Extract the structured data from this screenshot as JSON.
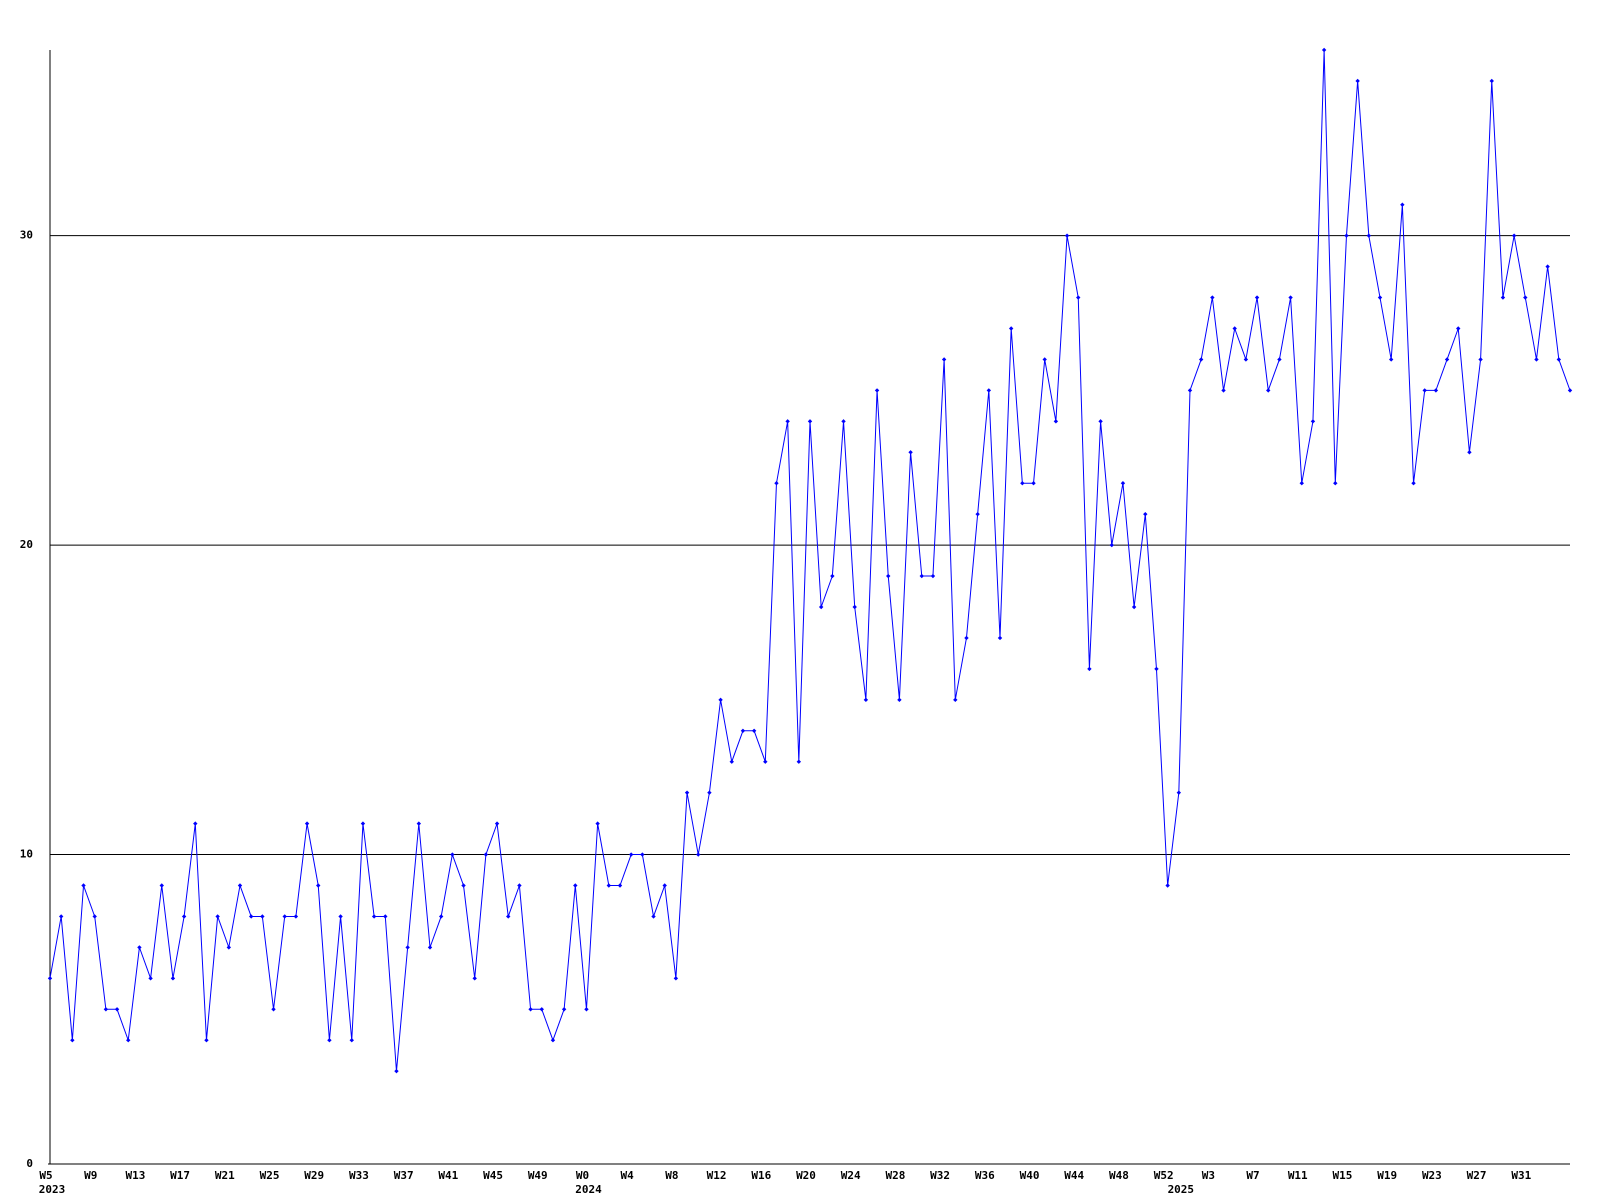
{
  "chart_data": {
    "type": "line",
    "color": "#0000ff",
    "grid": true,
    "ylim": [
      0,
      36
    ],
    "yticks": [
      0,
      10,
      20,
      30
    ],
    "categories": [
      "W5",
      null,
      null,
      null,
      "W9",
      null,
      null,
      null,
      "W13",
      null,
      null,
      null,
      "W17",
      null,
      null,
      null,
      "W21",
      null,
      null,
      null,
      "W25",
      null,
      null,
      null,
      "W29",
      null,
      null,
      null,
      "W33",
      null,
      null,
      null,
      "W37",
      null,
      null,
      null,
      "W41",
      null,
      null,
      null,
      "W45",
      null,
      null,
      null,
      "W49",
      null,
      null,
      null,
      "W0",
      null,
      null,
      null,
      "W4",
      null,
      null,
      null,
      "W8",
      null,
      null,
      null,
      "W12",
      null,
      null,
      null,
      "W16",
      null,
      null,
      null,
      "W20",
      null,
      null,
      null,
      "W24",
      null,
      null,
      null,
      "W28",
      null,
      null,
      null,
      "W32",
      null,
      null,
      null,
      "W36",
      null,
      null,
      null,
      "W40",
      null,
      null,
      null,
      "W44",
      null,
      null,
      null,
      "W48",
      null,
      null,
      null,
      "W52",
      null,
      null,
      null,
      "W3",
      null,
      null,
      null,
      "W7",
      null,
      null,
      null,
      "W11",
      null,
      null,
      null,
      "W15",
      null,
      null,
      null,
      "W19",
      null,
      null,
      null,
      "W23",
      null,
      null,
      null,
      "W27",
      null,
      null,
      null,
      "W31",
      null,
      null,
      null,
      null
    ],
    "x_year_labels": [
      "2023",
      null,
      null,
      null,
      null,
      null,
      null,
      null,
      null,
      null,
      null,
      null,
      null,
      null,
      null,
      null,
      null,
      null,
      null,
      null,
      null,
      null,
      null,
      null,
      null,
      null,
      null,
      null,
      null,
      null,
      null,
      null,
      null,
      null,
      null,
      null,
      null,
      null,
      null,
      null,
      null,
      null,
      null,
      null,
      null,
      null,
      null,
      null,
      "2024",
      null,
      null,
      null,
      null,
      null,
      null,
      null,
      null,
      null,
      null,
      null,
      null,
      null,
      null,
      null,
      null,
      null,
      null,
      null,
      null,
      null,
      null,
      null,
      null,
      null,
      null,
      null,
      null,
      null,
      null,
      null,
      null,
      null,
      null,
      null,
      null,
      null,
      null,
      null,
      null,
      null,
      null,
      null,
      null,
      null,
      null,
      null,
      null,
      null,
      null,
      null,
      null,
      "2025",
      null,
      null,
      null,
      null,
      null,
      null,
      null,
      null,
      null,
      null,
      null,
      null,
      null,
      null,
      null,
      null,
      null,
      null,
      null,
      null,
      null,
      null,
      null,
      null,
      null,
      null,
      null,
      null,
      null,
      null,
      null,
      null,
      null,
      null,
      null
    ],
    "values": [
      6,
      8,
      4,
      9,
      8,
      5,
      5,
      4,
      7,
      6,
      9,
      6,
      8,
      11,
      4,
      8,
      7,
      9,
      8,
      8,
      5,
      8,
      8,
      11,
      9,
      4,
      8,
      4,
      11,
      8,
      8,
      3,
      7,
      11,
      7,
      8,
      10,
      9,
      6,
      10,
      11,
      8,
      9,
      5,
      5,
      4,
      5,
      9,
      5,
      11,
      9,
      9,
      10,
      10,
      8,
      9,
      6,
      12,
      10,
      12,
      15,
      13,
      14,
      14,
      13,
      22,
      24,
      13,
      24,
      18,
      19,
      24,
      18,
      15,
      25,
      19,
      15,
      23,
      19,
      19,
      26,
      15,
      17,
      21,
      25,
      17,
      27,
      22,
      22,
      26,
      24,
      30,
      28,
      16,
      24,
      20,
      22,
      18,
      21,
      16,
      9,
      12,
      25,
      26,
      28,
      25,
      27,
      26,
      28,
      25,
      26,
      28,
      22,
      24,
      36,
      22,
      30,
      35,
      30,
      28,
      26,
      31,
      22,
      25,
      25,
      26,
      27,
      23,
      26,
      35,
      28,
      30,
      28,
      26,
      29,
      26,
      25
    ]
  }
}
